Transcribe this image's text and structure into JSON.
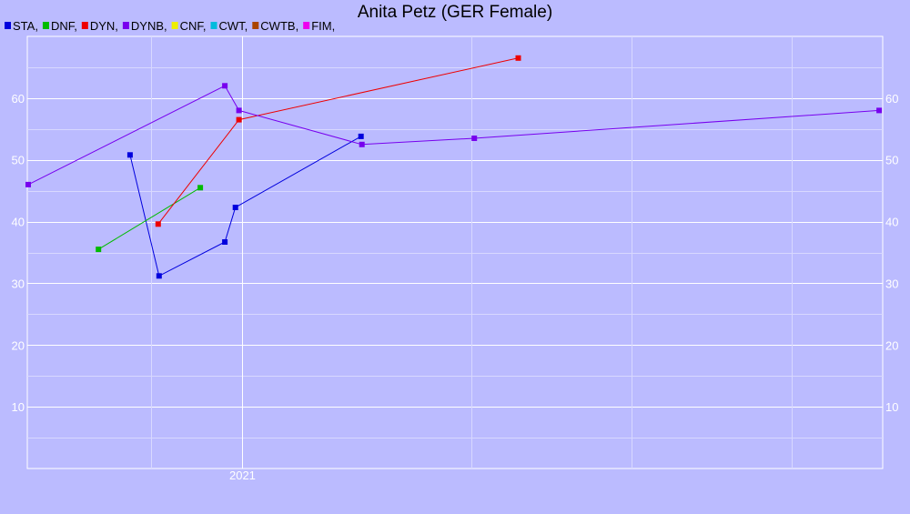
{
  "chart_data": {
    "type": "line",
    "title": "Anita Petz (GER Female)",
    "xlabel": "",
    "ylabel": "",
    "x_ticks": [
      "2021"
    ],
    "y_ticks": [
      10,
      20,
      30,
      40,
      50,
      60
    ],
    "ylim": [
      0,
      70
    ],
    "xlim": [
      "2020-05-01",
      "2022-12-31"
    ],
    "grid": true,
    "legend_position": "top-left",
    "legend": [
      {
        "label": "STA,",
        "color": "#0000dd"
      },
      {
        "label": "DNF,",
        "color": "#00bb00"
      },
      {
        "label": "DYN,",
        "color": "#ee0000"
      },
      {
        "label": "DYNB,",
        "color": "#7700ee"
      },
      {
        "label": "CNF,",
        "color": "#eeee00"
      },
      {
        "label": "CWT,",
        "color": "#00bbdd"
      },
      {
        "label": "CWTB,",
        "color": "#aa4400"
      },
      {
        "label": "FIM,",
        "color": "#ee00ee"
      }
    ],
    "series": [
      {
        "key": "STA",
        "color": "#0000dd",
        "points": [
          {
            "x": "2020-08-26",
            "y": 50.8
          },
          {
            "x": "2020-09-28",
            "y": 31.2
          },
          {
            "x": "2020-12-12",
            "y": 36.7
          },
          {
            "x": "2020-12-24",
            "y": 42.3
          },
          {
            "x": "2021-05-16",
            "y": 53.8
          }
        ]
      },
      {
        "key": "DNF",
        "color": "#00bb00",
        "points": [
          {
            "x": "2020-07-21",
            "y": 35.5
          },
          {
            "x": "2020-11-14",
            "y": 45.5
          }
        ]
      },
      {
        "key": "DYN",
        "color": "#ee0000",
        "points": [
          {
            "x": "2020-09-27",
            "y": 39.6
          },
          {
            "x": "2020-12-28",
            "y": 56.5
          },
          {
            "x": "2021-11-11",
            "y": 66.5
          }
        ]
      },
      {
        "key": "DYNB",
        "color": "#7700ee",
        "points": [
          {
            "x": "2020-05-02",
            "y": 46.0
          },
          {
            "x": "2020-12-12",
            "y": 62.0
          },
          {
            "x": "2020-12-28",
            "y": 58.0
          },
          {
            "x": "2021-05-17",
            "y": 52.5
          },
          {
            "x": "2021-09-22",
            "y": 53.5
          },
          {
            "x": "2022-12-27",
            "y": 58.0
          }
        ]
      }
    ]
  }
}
